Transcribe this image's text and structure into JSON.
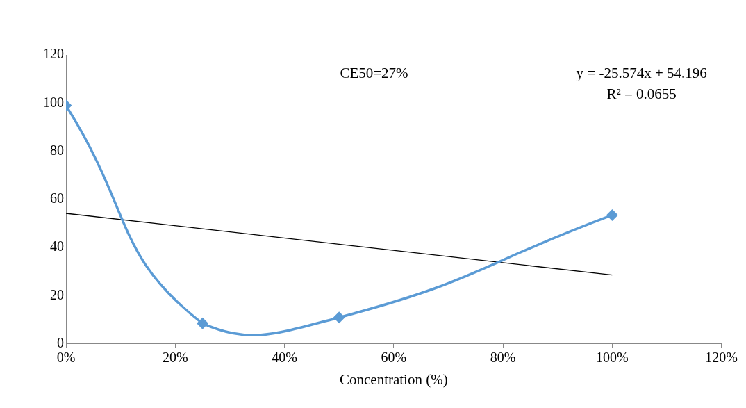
{
  "chart_data": {
    "type": "line",
    "xlabel": "Concentration (%)",
    "xlim": [
      0,
      1.2
    ],
    "xticks": [
      {
        "value": 0,
        "label": "0%"
      },
      {
        "value": 0.2,
        "label": "20%"
      },
      {
        "value": 0.4,
        "label": "40%"
      },
      {
        "value": 0.6,
        "label": "60%"
      },
      {
        "value": 0.8,
        "label": "80%"
      },
      {
        "value": 1,
        "label": "100%"
      },
      {
        "value": 1.2,
        "label": "120%"
      }
    ],
    "ylim": [
      0,
      120
    ],
    "yticks": [
      0,
      20,
      40,
      60,
      80,
      100,
      120
    ],
    "grid": false,
    "legend": false,
    "series": [
      {
        "color": "#5b9bd5",
        "marker": "diamond",
        "x": [
          0,
          0.25,
          0.5,
          1
        ],
        "values": [
          99,
          8.5,
          11,
          53.5
        ]
      },
      {
        "color": "#000000",
        "marker": "none",
        "x": [
          0,
          1
        ],
        "values": [
          54.2,
          28.6
        ]
      }
    ],
    "annotations": [
      "CE50=27%",
      "y = -25.574x + 54.196",
      "R² = 0.0655"
    ]
  }
}
